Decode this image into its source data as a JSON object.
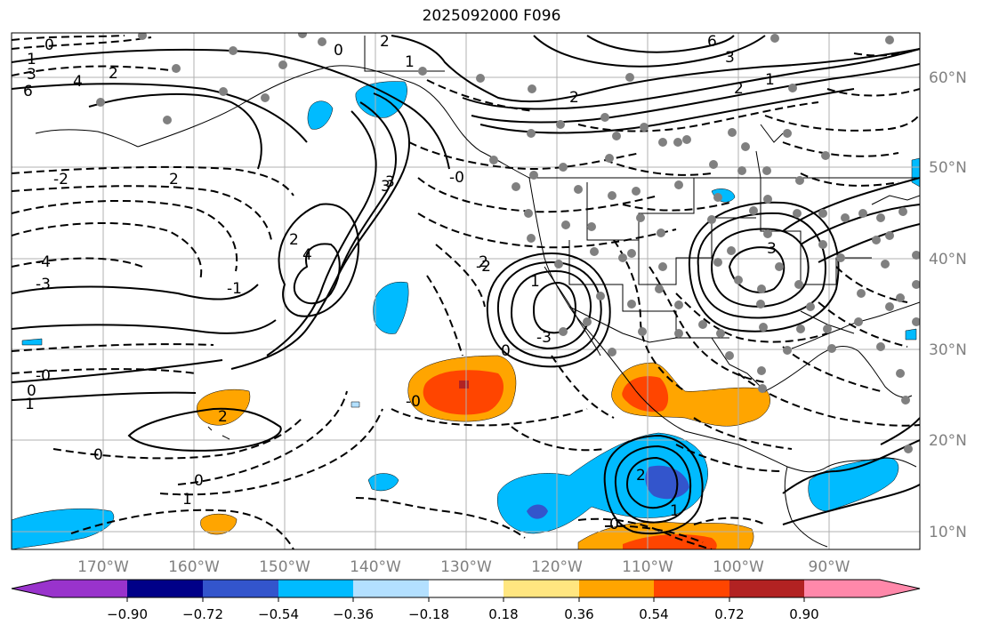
{
  "title": "2025092000 F096",
  "map": {
    "lon_ticks": [
      "170°W",
      "160°W",
      "150°W",
      "140°W",
      "130°W",
      "120°W",
      "110°W",
      "100°W",
      "90°W"
    ],
    "lat_ticks": [
      "60°N",
      "50°N",
      "40°N",
      "30°N",
      "20°N",
      "10°N"
    ],
    "contour_labels": [
      "0",
      "1",
      "3",
      "4",
      "2",
      "6",
      "2",
      "0",
      "3",
      "-2",
      "2",
      "-4",
      "-3",
      "4",
      "2",
      "-1",
      "-0",
      "0",
      "1",
      "2",
      "0",
      "0",
      "1",
      "-0",
      "-2",
      "-3",
      "1",
      "0",
      "1",
      "2",
      "2",
      "0",
      "3",
      "2",
      "3",
      "1",
      "2",
      "-0",
      "1",
      "6",
      "3"
    ]
  },
  "colorbar": {
    "ticks": [
      "−0.90",
      "−0.72",
      "−0.54",
      "−0.36",
      "−0.18",
      "0.18",
      "0.36",
      "0.54",
      "0.72",
      "0.90"
    ],
    "colors": {
      "under": "#9933cc",
      "c1": "#000088",
      "c2": "#3355cc",
      "c3": "#00bbff",
      "c4": "#b3e0ff",
      "white": "#ffffff",
      "c6": "#ffe680",
      "c7": "#ffa500",
      "c8": "#ff4500",
      "c9": "#b22222",
      "over": "#ff88aa"
    }
  }
}
